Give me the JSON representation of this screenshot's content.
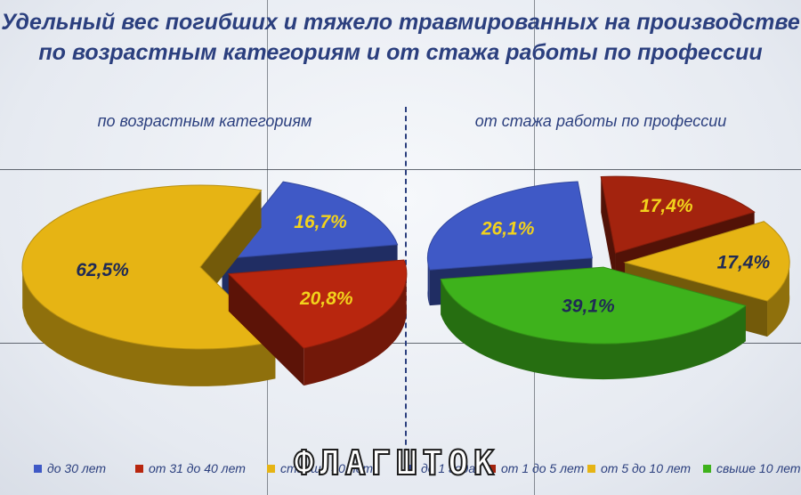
{
  "title": {
    "line1": "Удельный вес погибших и тяжело травмированных на производстве",
    "line2": "по возрастным категориям и от стажа работы по профессии"
  },
  "watermark": "ФЛАГШТОК",
  "chart_data": [
    {
      "type": "pie",
      "title": "по возрастным категориям",
      "labels": [
        "до 30 лет",
        "от 31 до 40 лет",
        "старше 40 лет"
      ],
      "values": [
        16.7,
        20.8,
        62.5
      ],
      "value_labels": [
        "16,7%",
        "20,8%",
        "62,5%"
      ],
      "colors": [
        "#3f59c6",
        "#b8260e",
        "#e6b414"
      ],
      "style": "3d-exploded"
    },
    {
      "type": "pie",
      "title": "от стажа работы по профессии",
      "labels": [
        "до 1 года",
        "от 1 до 5 лет",
        "от 5 до 10 лет",
        "свыше 10 лет"
      ],
      "values": [
        26.1,
        17.4,
        17.4,
        39.1
      ],
      "value_labels": [
        "26,1%",
        "17,4%",
        "17,4%",
        "39,1%"
      ],
      "colors": [
        "#3f59c6",
        "#a3230e",
        "#e6b414",
        "#3eb21c"
      ],
      "style": "3d-exploded"
    }
  ],
  "legend": [
    {
      "label": "до 30 лет",
      "color": "#3f59c6"
    },
    {
      "label": "от 31 до 40 лет",
      "color": "#b8260e"
    },
    {
      "label": "старше 40 лет",
      "color": "#e6b414"
    },
    {
      "label": "до 1 года",
      "color": "#3f59c6"
    },
    {
      "label": "от 1 до 5 лет",
      "color": "#a3230e"
    },
    {
      "label": "от 5 до 10 лет",
      "color": "#e6b414"
    },
    {
      "label": "свыше 10 лет",
      "color": "#3eb21c"
    }
  ]
}
